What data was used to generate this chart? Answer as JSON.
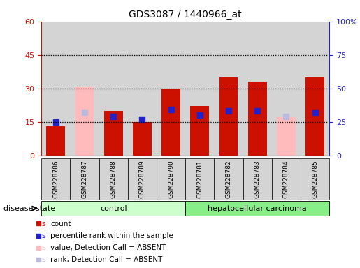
{
  "title": "GDS3087 / 1440966_at",
  "samples": [
    "GSM228786",
    "GSM228787",
    "GSM228788",
    "GSM228789",
    "GSM228790",
    "GSM228781",
    "GSM228782",
    "GSM228783",
    "GSM228784",
    "GSM228785"
  ],
  "count": [
    13,
    null,
    20,
    15,
    30,
    22,
    35,
    33,
    null,
    35
  ],
  "percentile_rank": [
    25,
    null,
    29,
    27,
    34,
    30,
    33,
    33,
    null,
    32
  ],
  "value_absent": [
    null,
    31,
    null,
    null,
    null,
    null,
    null,
    null,
    17,
    null
  ],
  "rank_absent": [
    null,
    32,
    null,
    null,
    null,
    null,
    null,
    null,
    29,
    null
  ],
  "absent_flags": [
    false,
    true,
    false,
    false,
    false,
    false,
    false,
    false,
    true,
    false
  ],
  "ylim_left": [
    0,
    60
  ],
  "ylim_right": [
    0,
    100
  ],
  "yticks_left": [
    0,
    15,
    30,
    45,
    60
  ],
  "yticks_right": [
    0,
    25,
    50,
    75,
    100
  ],
  "yticklabels_left": [
    "0",
    "15",
    "30",
    "45",
    "60"
  ],
  "yticklabels_right": [
    "0",
    "25",
    "50",
    "75",
    "100%"
  ],
  "color_count": "#cc1100",
  "color_rank": "#2222cc",
  "color_value_absent": "#ffbbbb",
  "color_rank_absent": "#bbbbdd",
  "color_col_bg": "#d4d4d4",
  "control_color": "#ccffcc",
  "cancer_color": "#88ee88",
  "legend_labels": [
    "count",
    "percentile rank within the sample",
    "value, Detection Call = ABSENT",
    "rank, Detection Call = ABSENT"
  ],
  "n_control": 5,
  "n_cancer": 5
}
